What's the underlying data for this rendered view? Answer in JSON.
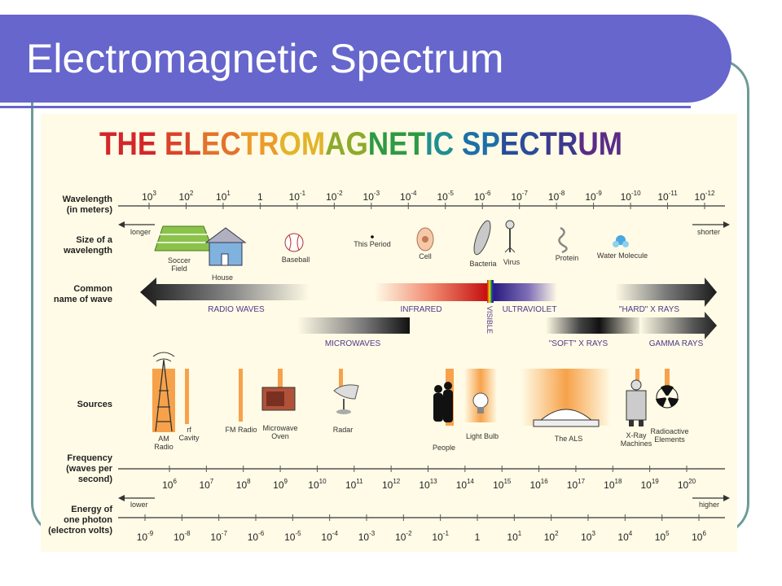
{
  "slide": {
    "title": "Electromagnetic Spectrum"
  },
  "figure": {
    "heading": "THE ELECTROMAGNETIC SPECTRUM",
    "heading_colors": [
      "#d4262a",
      "#d9452a",
      "#e3732b",
      "#eb9b2b",
      "#e2b42a",
      "#8dab2c",
      "#2e9a44",
      "#1f8f8f",
      "#1d6fa8",
      "#2a4c9a",
      "#3c3a8f",
      "#5a2c86"
    ],
    "row_labels": {
      "wavelength": [
        "Wavelength",
        "(in meters)"
      ],
      "size": [
        "Size of a",
        "wavelength"
      ],
      "common": [
        "Common",
        "name of wave"
      ],
      "sources": [
        "Sources"
      ],
      "frequency": [
        "Frequency",
        "(waves per",
        "second)"
      ],
      "energy": [
        "Energy of",
        "one photon",
        "(electron volts)"
      ]
    },
    "wavelength_ticks": [
      {
        "base": "10",
        "exp": "3"
      },
      {
        "base": "10",
        "exp": "2"
      },
      {
        "base": "10",
        "exp": "1"
      },
      {
        "base": "1",
        "exp": ""
      },
      {
        "base": "10",
        "exp": "-1"
      },
      {
        "base": "10",
        "exp": "-2"
      },
      {
        "base": "10",
        "exp": "-3"
      },
      {
        "base": "10",
        "exp": "-4"
      },
      {
        "base": "10",
        "exp": "-5"
      },
      {
        "base": "10",
        "exp": "-6"
      },
      {
        "base": "10",
        "exp": "-7"
      },
      {
        "base": "10",
        "exp": "-8"
      },
      {
        "base": "10",
        "exp": "-9"
      },
      {
        "base": "10",
        "exp": "-10"
      },
      {
        "base": "10",
        "exp": "-11"
      },
      {
        "base": "10",
        "exp": "-12"
      }
    ],
    "frequency_ticks": [
      {
        "base": "10",
        "exp": "6"
      },
      {
        "base": "10",
        "exp": "7"
      },
      {
        "base": "10",
        "exp": "8"
      },
      {
        "base": "10",
        "exp": "9"
      },
      {
        "base": "10",
        "exp": "10"
      },
      {
        "base": "10",
        "exp": "11"
      },
      {
        "base": "10",
        "exp": "12"
      },
      {
        "base": "10",
        "exp": "13"
      },
      {
        "base": "10",
        "exp": "14"
      },
      {
        "base": "10",
        "exp": "15"
      },
      {
        "base": "10",
        "exp": "16"
      },
      {
        "base": "10",
        "exp": "17"
      },
      {
        "base": "10",
        "exp": "18"
      },
      {
        "base": "10",
        "exp": "19"
      },
      {
        "base": "10",
        "exp": "20"
      }
    ],
    "energy_ticks": [
      {
        "base": "10",
        "exp": "-9"
      },
      {
        "base": "10",
        "exp": "-8"
      },
      {
        "base": "10",
        "exp": "-7"
      },
      {
        "base": "10",
        "exp": "-6"
      },
      {
        "base": "10",
        "exp": "-5"
      },
      {
        "base": "10",
        "exp": "-4"
      },
      {
        "base": "10",
        "exp": "-3"
      },
      {
        "base": "10",
        "exp": "-2"
      },
      {
        "base": "10",
        "exp": "-1"
      },
      {
        "base": "1",
        "exp": ""
      },
      {
        "base": "10",
        "exp": "1"
      },
      {
        "base": "10",
        "exp": "2"
      },
      {
        "base": "10",
        "exp": "3"
      },
      {
        "base": "10",
        "exp": "4"
      },
      {
        "base": "10",
        "exp": "5"
      },
      {
        "base": "10",
        "exp": "6"
      }
    ],
    "direction_labels": {
      "longer": "longer",
      "shorter": "shorter",
      "lower": "lower",
      "higher": "higher"
    },
    "size_objects": [
      "Soccer Field",
      "House",
      "Baseball",
      "This Period",
      "Cell",
      "Bacteria",
      "Virus",
      "Protein",
      "Water Molecule"
    ],
    "wave_names": {
      "radio": "RADIO WAVES",
      "infrared": "INFRARED",
      "visible": "VISIBLE",
      "ultraviolet": "ULTRAVIOLET",
      "hard_xrays": "\"HARD\" X RAYS",
      "microwaves": "MICROWAVES",
      "soft_xrays": "\"SOFT\" X RAYS",
      "gamma": "GAMMA RAYS"
    },
    "sources": [
      "AM Radio",
      "rf Cavity",
      "FM Radio",
      "Microwave Oven",
      "Radar",
      "People",
      "Light Bulb",
      "The ALS",
      "X-Ray Machines",
      "Radioactive Elements"
    ]
  }
}
